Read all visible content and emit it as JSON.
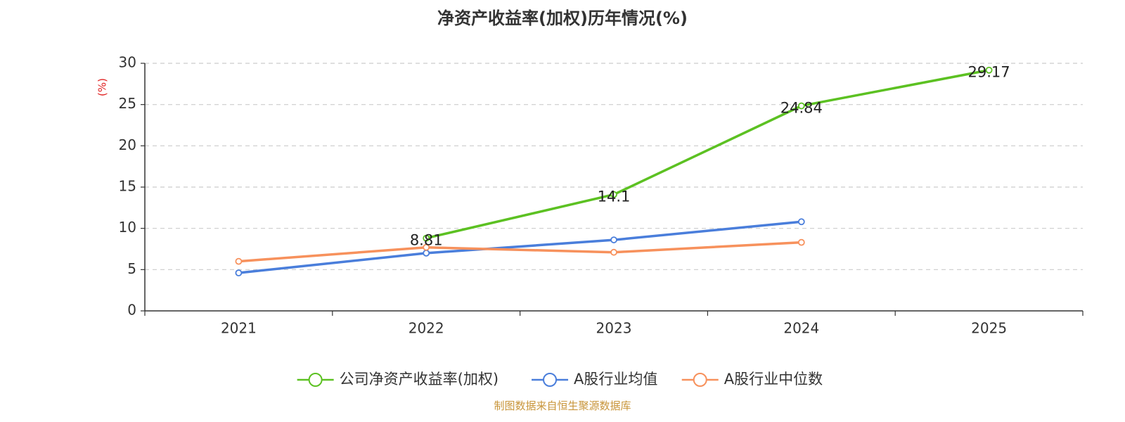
{
  "chart_data": {
    "type": "line",
    "title": "净资产收益率(加权)历年情况(%)",
    "ylabel": "(%)",
    "xlabel": "",
    "categories": [
      "2021",
      "2022",
      "2023",
      "2024",
      "2025"
    ],
    "ylim": [
      0,
      30
    ],
    "yticks": [
      0,
      5,
      10,
      15,
      20,
      25,
      30
    ],
    "grid": true,
    "legend_position": "bottom",
    "series": [
      {
        "name": "公司净资产收益率(加权)",
        "color": "#5cc122",
        "values": [
          null,
          8.81,
          14.1,
          24.84,
          29.17
        ],
        "labels": [
          "",
          "8.81",
          "14.1",
          "24.84",
          "29.17"
        ]
      },
      {
        "name": "A股行业均值",
        "color": "#4a7edb",
        "values": [
          4.6,
          7.0,
          8.6,
          10.8,
          null
        ]
      },
      {
        "name": "A股行业中位数",
        "color": "#f7915c",
        "values": [
          6.0,
          7.7,
          7.1,
          8.3,
          null
        ]
      }
    ]
  },
  "source": "制图数据来自恒生聚源数据库"
}
